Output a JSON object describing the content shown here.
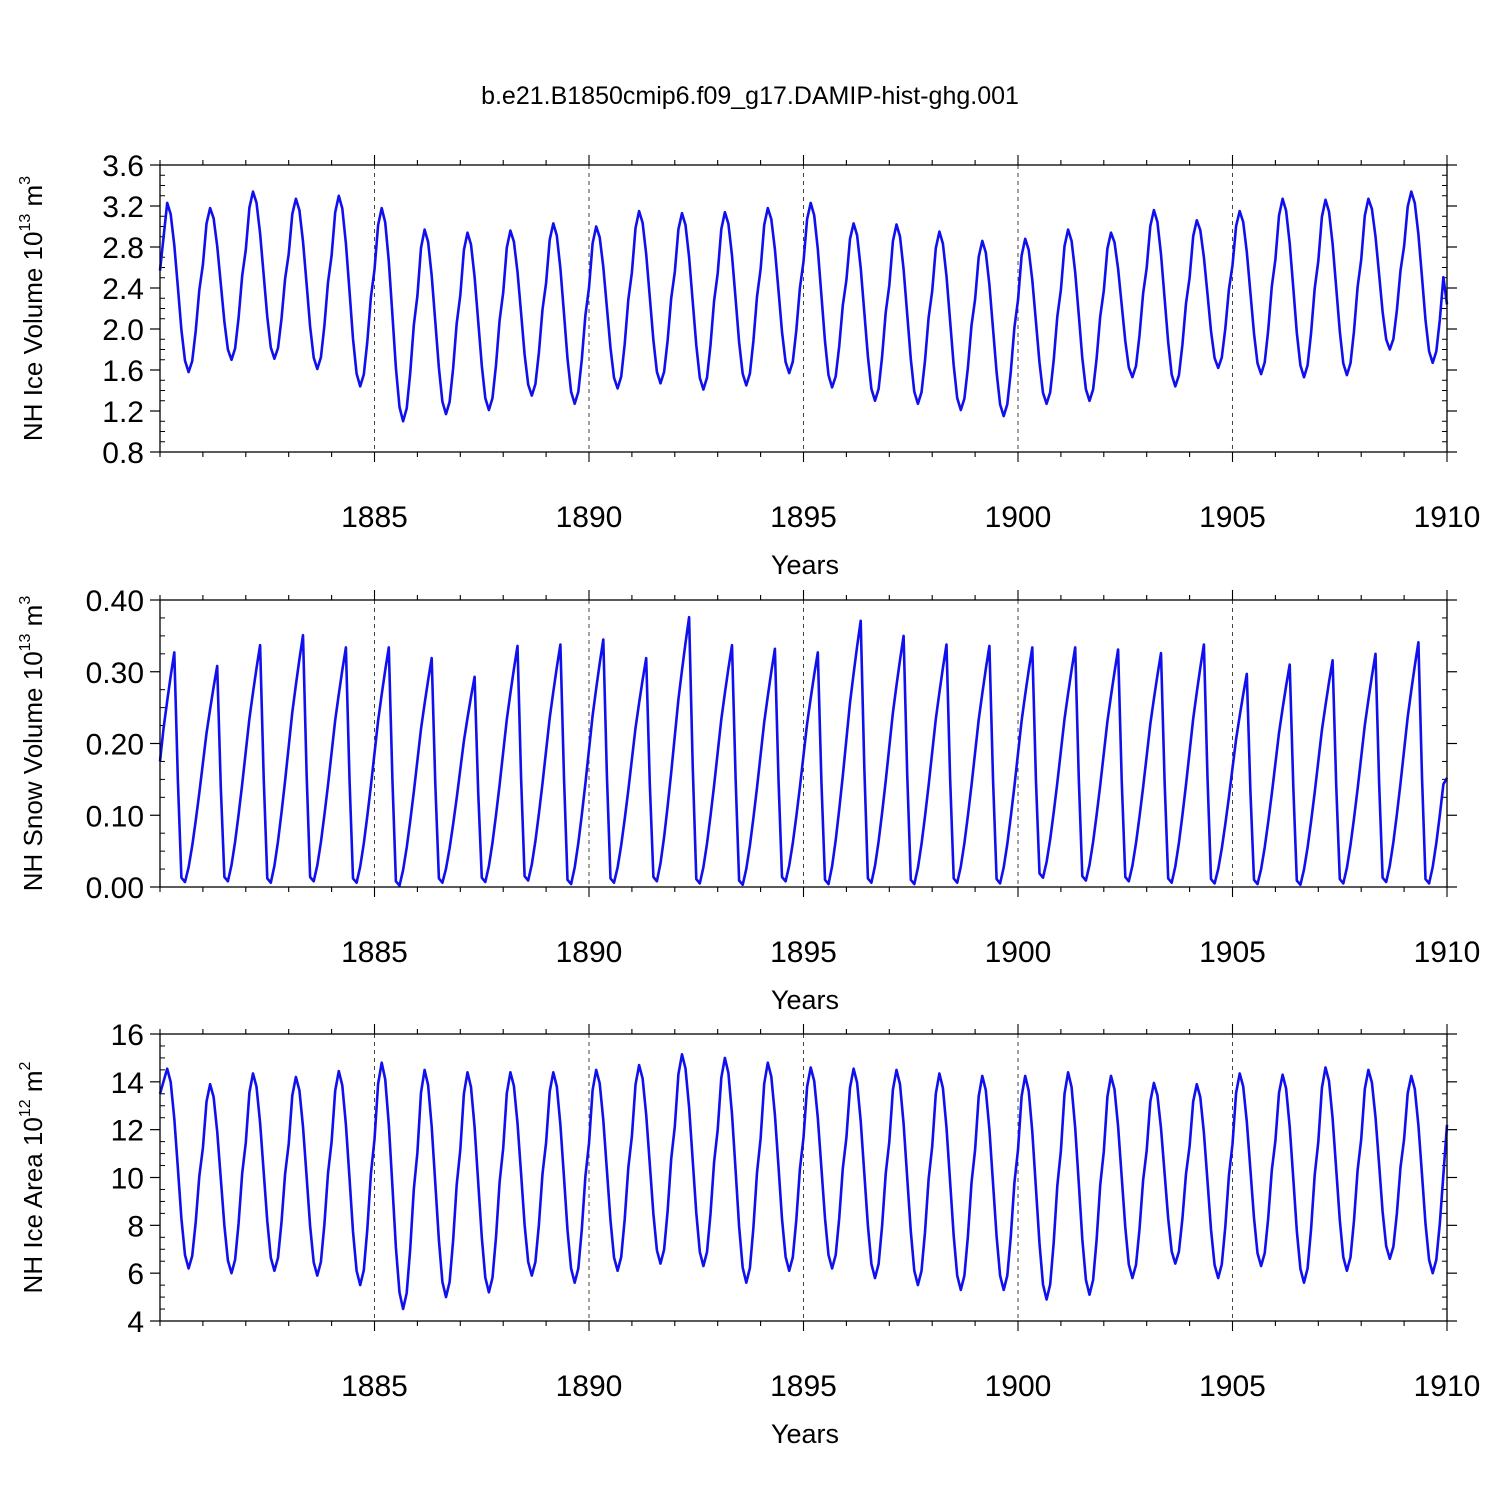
{
  "title": "b.e21.B1850cmip6.f09_g17.DAMIP-hist-ghg.001",
  "colors": {
    "line": "#1010ee",
    "axis": "#000000",
    "grid": "#444444"
  },
  "chart_data": [
    {
      "type": "line",
      "name": "ice-volume",
      "ylabel": "NH Ice Volume",
      "unit_exp": "13",
      "unit_power": "3",
      "xlabel": "Years",
      "ylim": [
        0.8,
        3.6
      ],
      "yticks": [
        "0.8",
        "1.2",
        "1.6",
        "2.0",
        "2.4",
        "2.8",
        "3.2",
        "3.6"
      ],
      "ytick_values": [
        0.8,
        1.2,
        1.6,
        2.0,
        2.4,
        2.8,
        3.2,
        3.6
      ],
      "series": [
        {
          "name": "NH Ice Volume",
          "start_year": 1880.0,
          "step": 0.08333,
          "max": [
            3.23,
            3.18,
            3.34,
            3.27,
            3.3,
            3.18,
            2.97,
            2.94,
            2.96,
            3.03,
            3.0,
            3.15,
            3.13,
            3.14,
            3.18,
            3.23,
            3.03,
            3.02,
            2.95,
            2.86,
            2.88,
            2.97,
            2.94,
            3.16,
            3.06,
            3.15,
            3.27,
            3.26,
            3.27,
            3.34
          ],
          "min": [
            1.58,
            1.7,
            1.71,
            1.61,
            1.44,
            1.1,
            1.17,
            1.21,
            1.35,
            1.27,
            1.42,
            1.47,
            1.41,
            1.45,
            1.57,
            1.43,
            1.3,
            1.27,
            1.21,
            1.15,
            1.27,
            1.3,
            1.53,
            1.44,
            1.62,
            1.56,
            1.53,
            1.55,
            1.8,
            1.67
          ],
          "end_value": 2.24
        }
      ]
    },
    {
      "type": "line",
      "name": "snow-volume",
      "ylabel": "NH Snow Volume",
      "unit_exp": "13",
      "unit_power": "3",
      "xlabel": "Years",
      "ylim": [
        0.0,
        0.4
      ],
      "yticks": [
        "0.00",
        "0.10",
        "0.20",
        "0.30",
        "0.40"
      ],
      "ytick_values": [
        0.0,
        0.1,
        0.2,
        0.3,
        0.4
      ],
      "series": [
        {
          "name": "NH Snow Volume",
          "start_year": 1880.0,
          "step": 0.08333,
          "max": [
            0.327,
            0.308,
            0.337,
            0.351,
            0.334,
            0.334,
            0.319,
            0.293,
            0.336,
            0.338,
            0.345,
            0.319,
            0.376,
            0.337,
            0.332,
            0.327,
            0.371,
            0.35,
            0.338,
            0.336,
            0.334,
            0.334,
            0.331,
            0.326,
            0.338,
            0.297,
            0.31,
            0.316,
            0.325,
            0.341
          ],
          "min": [
            0.007,
            0.008,
            0.006,
            0.008,
            0.006,
            0.002,
            0.006,
            0.007,
            0.009,
            0.004,
            0.006,
            0.008,
            0.005,
            0.003,
            0.008,
            0.004,
            0.006,
            0.004,
            0.006,
            0.005,
            0.013,
            0.009,
            0.008,
            0.006,
            0.005,
            0.004,
            0.003,
            0.005,
            0.007,
            0.005
          ],
          "start_value": 0.175,
          "end_value": 0.152
        }
      ]
    },
    {
      "type": "line",
      "name": "ice-area",
      "ylabel": "NH Ice Area",
      "unit_exp": "12",
      "unit_power": "2",
      "xlabel": "Years",
      "ylim": [
        4,
        16
      ],
      "yticks": [
        "4",
        "6",
        "8",
        "10",
        "12",
        "14",
        "16"
      ],
      "ytick_values": [
        4,
        6,
        8,
        10,
        12,
        14,
        16
      ],
      "series": [
        {
          "name": "NH Ice Area",
          "start_year": 1880.0,
          "step": 0.08333,
          "max": [
            14.55,
            13.9,
            14.35,
            14.2,
            14.45,
            14.8,
            14.5,
            14.4,
            14.4,
            14.4,
            14.5,
            14.7,
            15.15,
            15.0,
            14.8,
            14.6,
            14.55,
            14.5,
            14.35,
            14.25,
            14.25,
            14.4,
            14.25,
            13.95,
            13.9,
            14.35,
            14.3,
            14.6,
            14.5,
            14.25
          ],
          "min": [
            6.2,
            6.0,
            6.1,
            5.9,
            5.5,
            4.5,
            5.0,
            5.2,
            5.9,
            5.6,
            6.1,
            6.4,
            6.3,
            5.6,
            6.1,
            6.2,
            5.8,
            5.5,
            5.3,
            5.3,
            4.9,
            5.1,
            5.8,
            6.4,
            5.8,
            6.3,
            5.6,
            6.1,
            6.6,
            6.0
          ],
          "start_value": 13.5,
          "end_value": 12.2
        }
      ]
    }
  ],
  "x_axis": {
    "xlim": [
      1880.0,
      1910.0
    ],
    "xticks": [
      "1885",
      "1890",
      "1895",
      "1900",
      "1905",
      "1910"
    ],
    "xtick_values": [
      1885,
      1890,
      1895,
      1900,
      1905,
      1910
    ],
    "minor_step": 1
  }
}
